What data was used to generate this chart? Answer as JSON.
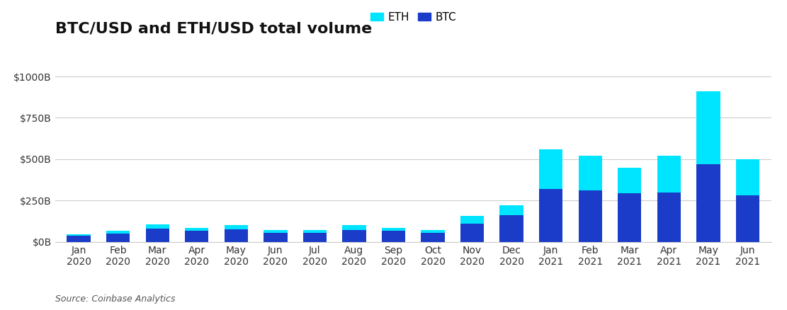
{
  "title": "BTC/USD and ETH/USD total volume",
  "source": "Source: Coinbase Analytics",
  "categories": [
    "Jan\n2020",
    "Feb\n2020",
    "Mar\n2020",
    "Apr\n2020",
    "May\n2020",
    "Jun\n2020",
    "Jul\n2020",
    "Aug\n2020",
    "Sep\n2020",
    "Oct\n2020",
    "Nov\n2020",
    "Dec\n2020",
    "Jan\n2021",
    "Feb\n2021",
    "Mar\n2021",
    "Apr\n2021",
    "May\n2021",
    "Jun\n2021"
  ],
  "btc_values": [
    35,
    50,
    80,
    65,
    75,
    55,
    55,
    70,
    65,
    55,
    110,
    160,
    320,
    310,
    295,
    300,
    470,
    280
  ],
  "eth_values": [
    10,
    15,
    25,
    20,
    25,
    15,
    15,
    30,
    20,
    15,
    45,
    60,
    240,
    210,
    155,
    220,
    440,
    220
  ],
  "btc_color": "#1a3cc8",
  "eth_color": "#00e5ff",
  "background_color": "#ffffff",
  "grid_color": "#cccccc",
  "title_fontsize": 16,
  "tick_fontsize": 10,
  "legend_fontsize": 11,
  "source_fontsize": 9,
  "ylim": [
    0,
    1050
  ],
  "yticks": [
    0,
    250,
    500,
    750,
    1000
  ],
  "ytick_labels": [
    "$0B",
    "$250B",
    "$500B",
    "$750B",
    "$1000B"
  ]
}
